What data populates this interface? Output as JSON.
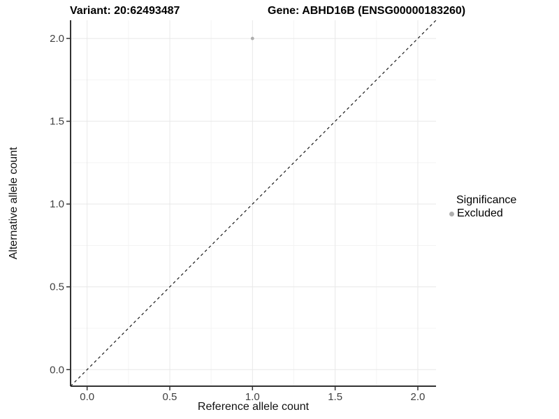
{
  "chart_data": {
    "type": "scatter",
    "title_left": "Variant: 20:62493487",
    "title_right": "Gene: ABHD16B (ENSG00000183260)",
    "xlabel": "Reference allele count",
    "ylabel": "Alternative allele count",
    "xlim": [
      -0.1,
      2.11
    ],
    "ylim": [
      -0.1,
      2.11
    ],
    "xticks": [
      0.0,
      0.5,
      1.0,
      1.5,
      2.0
    ],
    "xtick_labels": [
      "0.0",
      "0.5",
      "1.0",
      "1.5",
      "2.0"
    ],
    "yticks": [
      0.0,
      0.5,
      1.0,
      1.5,
      2.0
    ],
    "ytick_labels": [
      "0.0",
      "0.5",
      "1.0",
      "1.5",
      "2.0"
    ],
    "xticks_minor": [
      0.25,
      0.75,
      1.25,
      1.75
    ],
    "yticks_minor": [
      0.25,
      0.75,
      1.25,
      1.75
    ],
    "grid": true,
    "identity_line": {
      "style": "dashed",
      "equation": "y = x"
    },
    "points": [
      {
        "x": 1.0,
        "y": 2.0,
        "series": "Excluded"
      }
    ],
    "legend": {
      "title": "Significance",
      "position": "right",
      "entries": [
        {
          "label": "Excluded",
          "color": "#aeaeae",
          "marker": "circle"
        }
      ]
    }
  },
  "colors": {
    "background": "#ffffff",
    "grid_major": "#e8e8e8",
    "grid_minor": "#f4f4f4",
    "axis_line": "#333333",
    "tick_mark": "#333333",
    "tick_label": "#404040",
    "identity_line": "#1a1a1a",
    "point": "#aeaeae"
  }
}
